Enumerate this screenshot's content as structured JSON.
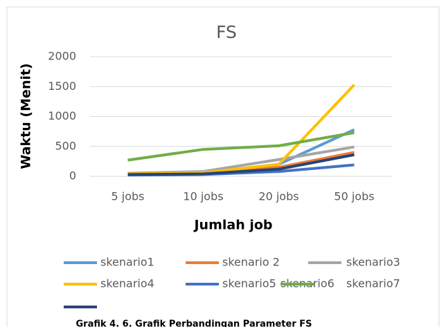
{
  "chart_data": {
    "type": "line",
    "title": "FS",
    "x_label": "Jumlah job",
    "y_label": "Waktu (Menit)",
    "categories": [
      "5 jobs",
      "10 jobs",
      "20 jobs",
      "50 jobs"
    ],
    "ylim": [
      0,
      2000
    ],
    "yticks": [
      0,
      500,
      1000,
      1500,
      2000
    ],
    "grid": true,
    "legend": "bottom",
    "series": [
      {
        "name": "skenario1",
        "color": "#5b9bd5",
        "values": [
          40,
          60,
          200,
          780
        ]
      },
      {
        "name": "skenario 2",
        "color": "#ed7d31",
        "values": [
          30,
          50,
          150,
          400
        ]
      },
      {
        "name": "skenario3",
        "color": "#a5a5a5",
        "values": [
          50,
          80,
          280,
          490
        ]
      },
      {
        "name": "skenario4",
        "color": "#ffc000",
        "values": [
          40,
          60,
          200,
          1530
        ]
      },
      {
        "name": "skenario5",
        "color": "#4472c4",
        "values": [
          20,
          30,
          80,
          190
        ]
      },
      {
        "name": "skenario6",
        "color": "#70ad47",
        "values": [
          270,
          450,
          510,
          730
        ]
      },
      {
        "name": "skenario7",
        "color": "#264478",
        "values": [
          30,
          40,
          120,
          360
        ]
      }
    ],
    "caption": "Grafik 4. 6. Grafik Perbandingan Parameter FS"
  }
}
